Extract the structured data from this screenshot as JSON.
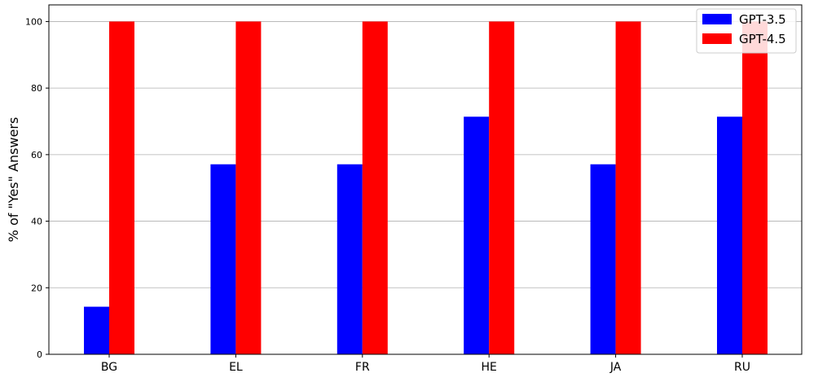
{
  "chart_data": {
    "type": "bar",
    "title": "",
    "xlabel": "",
    "ylabel": "% of \"Yes\" Answers",
    "categories": [
      "BG",
      "EL",
      "FR",
      "HE",
      "JA",
      "RU"
    ],
    "series": [
      {
        "name": "GPT-3.5",
        "color": "#0000ff",
        "values": [
          14.3,
          57.1,
          57.1,
          71.4,
          57.1,
          71.4
        ]
      },
      {
        "name": "GPT-4.5",
        "color": "#ff0000",
        "values": [
          100,
          100,
          100,
          100,
          100,
          100
        ]
      }
    ],
    "ylim": [
      0,
      105
    ],
    "yticks": [
      0,
      20,
      40,
      60,
      80,
      100
    ],
    "grid": "horizontal",
    "legend_position": "top-right"
  }
}
